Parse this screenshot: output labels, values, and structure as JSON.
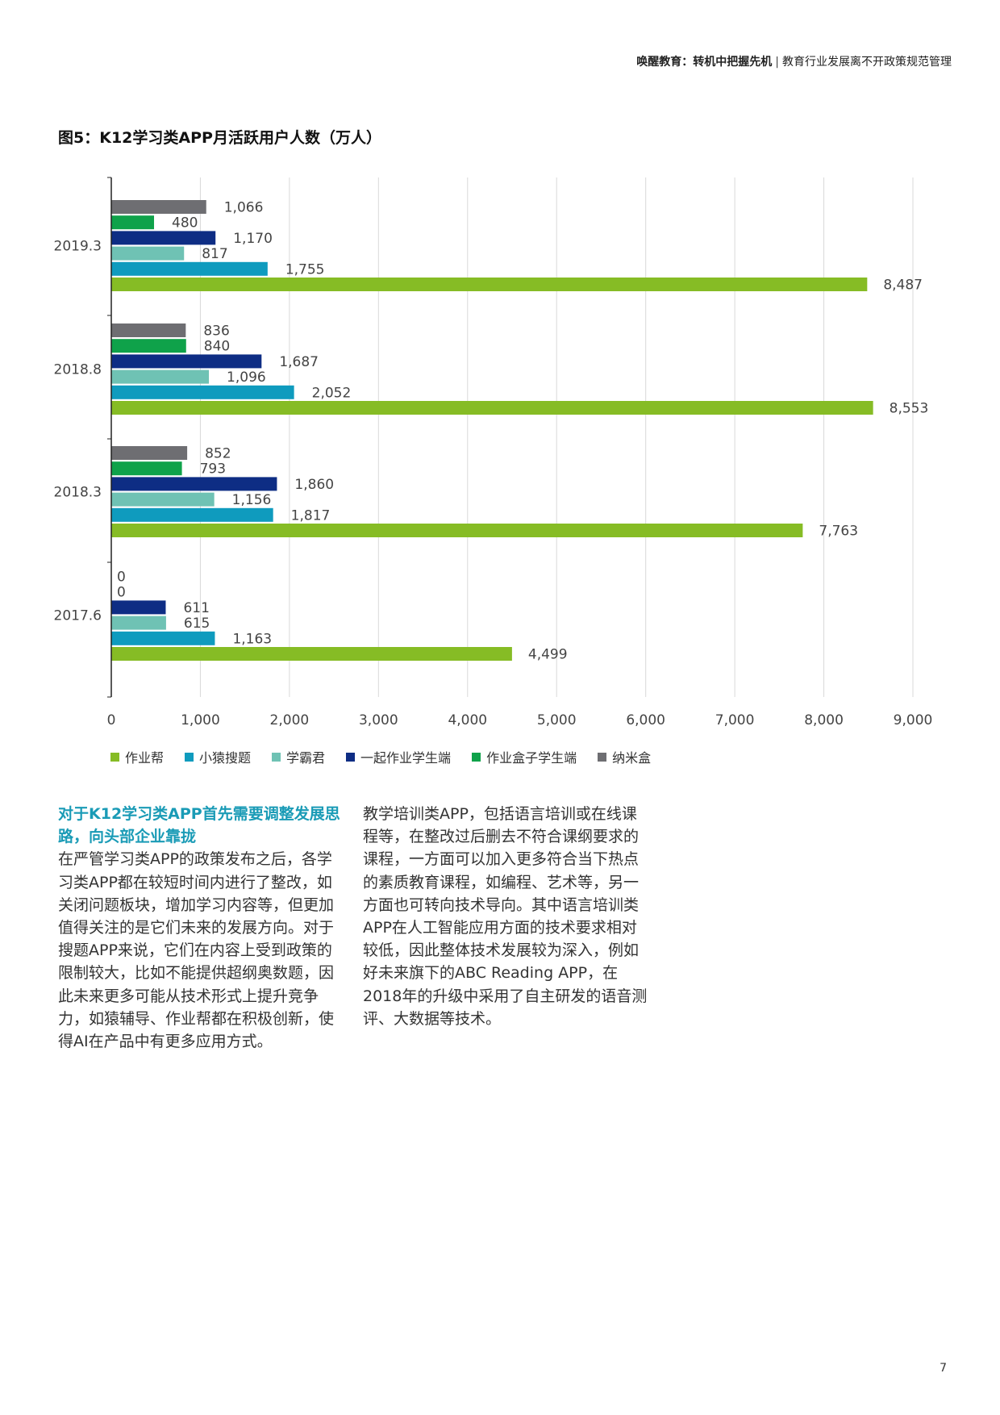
{
  "header": {
    "bold_part": "唤醒教育：转机中把握先机",
    "separator": "|",
    "normal_part": "教育行业发展离不开政策规范管理"
  },
  "figure": {
    "title": "图5：K12学习类APP月活跃用户人数（万人）"
  },
  "chart_data": {
    "type": "bar",
    "orientation": "horizontal",
    "title": "图5：K12学习类APP月活跃用户人数（万人）",
    "categories": [
      "2019.3",
      "2018.8",
      "2018.3",
      "2017.6"
    ],
    "xlim": [
      0,
      9000
    ],
    "xticks": [
      "0",
      "1,000",
      "2,000",
      "3,000",
      "4,000",
      "5,000",
      "6,000",
      "7,000",
      "8,000",
      "9,000"
    ],
    "tick_values": [
      0,
      1000,
      2000,
      3000,
      4000,
      5000,
      6000,
      7000,
      8000,
      9000
    ],
    "grid": true,
    "legend_position": "bottom",
    "series_draw_order": [
      "纳米盒",
      "作业盒子学生端",
      "一起作业学生端",
      "学霸君",
      "小猿搜题",
      "作业帮"
    ],
    "series": [
      {
        "name": "作业帮",
        "color": "#86bc25",
        "values": [
          8487,
          8553,
          7763,
          4499
        ],
        "labels": [
          "8,487",
          "8,553",
          "7,763",
          "4,499"
        ]
      },
      {
        "name": "小猿搜题",
        "color": "#0f9bbe",
        "values": [
          1755,
          2052,
          1817,
          1163
        ],
        "labels": [
          "1,755",
          "2,052",
          "1,817",
          "1,163"
        ]
      },
      {
        "name": "学霸君",
        "color": "#6fc2b4",
        "values": [
          817,
          1096,
          1156,
          615
        ],
        "labels": [
          "817",
          "1,096",
          "1,156",
          "615"
        ]
      },
      {
        "name": "一起作业学生端",
        "color": "#0e2d84",
        "values": [
          1170,
          1687,
          1860,
          611
        ],
        "labels": [
          "1,170",
          "1,687",
          "1,860",
          "611"
        ]
      },
      {
        "name": "作业盒子学生端",
        "color": "#0fa24a",
        "values": [
          480,
          840,
          793,
          0
        ],
        "labels": [
          "480",
          "840",
          "793",
          "0"
        ]
      },
      {
        "name": "纳米盒",
        "color": "#6e6e72",
        "values": [
          1066,
          836,
          852,
          0
        ],
        "labels": [
          "1,066",
          "836",
          "852",
          "0"
        ]
      }
    ]
  },
  "text": {
    "heading": "对于K12学习类APP首先需要调整发展思路，向头部企业靠拢",
    "left_body": "在严管学习类APP的政策发布之后，各学习类APP都在较短时间内进行了整改，如关闭问题板块，增加学习内容等，但更加值得关注的是它们未来的发展方向。对于搜题APP来说，它们在内容上受到政策的限制较大，比如不能提供超纲奥数题，因此未来更多可能从技术形式上提升竞争力，如猿辅导、作业帮都在积极创新，使得AI在产品中有更多应用方式。",
    "right_body": "教学培训类APP，包括语言培训或在线课程等，在整改过后删去不符合课纲要求的课程，一方面可以加入更多符合当下热点的素质教育课程，如编程、艺术等，另一方面也可转向技术导向。其中语言培训类APP在人工智能应用方面的技术要求相对较低，因此整体技术发展较为深入，例如好未来旗下的ABC Reading APP，在2018年的升级中采用了自主研发的语音测评、大数据等技术。"
  },
  "page_number": "7"
}
